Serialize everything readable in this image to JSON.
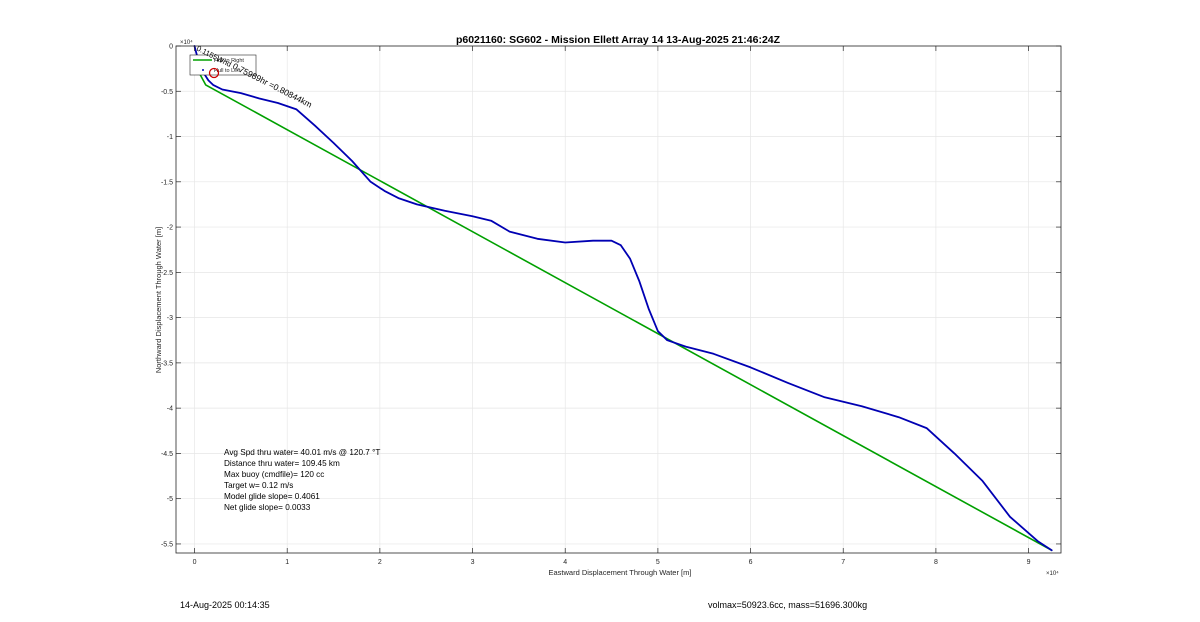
{
  "chart_data": {
    "type": "line",
    "title": "p6021160: SG602 - Mission Ellett Array 14 13-Aug-2025 21:46:24Z",
    "xlabel": "Eastward Displacement Through Water [m]",
    "ylabel": "Northward Displacement Through Water [m]",
    "x_exponent_label": "×10⁴",
    "y_exponent_label": "×10⁴",
    "xlim": [
      -0.2,
      9.35
    ],
    "ylim": [
      -5.6,
      0
    ],
    "x_unit_scale": 10000,
    "y_unit_scale": 10000,
    "xticks": [
      0,
      1,
      2,
      3,
      4,
      5,
      6,
      7,
      8,
      9
    ],
    "xtick_labels": [
      "0",
      "1",
      "2",
      "3",
      "4",
      "5",
      "6",
      "7",
      "8",
      "9"
    ],
    "yticks": [
      0,
      -0.5,
      -1,
      -1.5,
      -2,
      -2.5,
      -3,
      -3.5,
      -4,
      -4.5,
      -5,
      -5.5
    ],
    "ytick_labels": [
      "0",
      "-0.5",
      "-1",
      "-1.5",
      "-2",
      "-2.5",
      "-3",
      "-3.5",
      "-4",
      "-4.5",
      "-5",
      "-5.5"
    ],
    "grid": true,
    "legend": {
      "placement": "top-left",
      "entries": [
        "Hull to Right",
        "Hull to Left"
      ]
    },
    "series": [
      {
        "color": "#0000b3",
        "x": [
          0.0,
          0.05,
          0.1,
          0.15,
          0.2,
          0.3,
          0.5,
          0.7,
          0.9,
          1.1,
          1.3,
          1.5,
          1.7,
          1.9,
          2.05,
          2.2,
          2.4,
          2.7,
          3.0,
          3.2,
          3.4,
          3.7,
          4.0,
          4.3,
          4.5,
          4.6,
          4.7,
          4.8,
          4.9,
          5.0,
          5.1,
          5.3,
          5.6,
          6.0,
          6.4,
          6.8,
          7.2,
          7.6,
          7.9,
          8.2,
          8.5,
          8.8,
          9.1,
          9.25
        ],
        "y": [
          0.0,
          -0.2,
          -0.3,
          -0.38,
          -0.43,
          -0.48,
          -0.52,
          -0.58,
          -0.63,
          -0.7,
          -0.88,
          -1.07,
          -1.27,
          -1.5,
          -1.6,
          -1.68,
          -1.75,
          -1.82,
          -1.88,
          -1.93,
          -2.05,
          -2.13,
          -2.17,
          -2.15,
          -2.15,
          -2.2,
          -2.35,
          -2.6,
          -2.9,
          -3.15,
          -3.25,
          -3.32,
          -3.4,
          -3.55,
          -3.72,
          -3.88,
          -3.98,
          -4.1,
          -4.22,
          -4.5,
          -4.8,
          -5.2,
          -5.47,
          -5.57
        ]
      },
      {
        "color": "#00a000",
        "x": [
          0.0,
          0.12,
          9.25
        ],
        "y": [
          -0.2,
          -0.43,
          -5.57
        ]
      }
    ],
    "legend_line_color": "#00a000",
    "legend_circle_color": "#cc0000",
    "annotations": {
      "diagonal_label": "0.75989hr =0.80844km",
      "diagonal_label_prefix": "0.1155Wnd",
      "stats": [
        "Avg Spd thru water= 40.01 m/s @ 120.7 °T",
        "Distance thru water= 109.45 km",
        "Max buoy (cmdfile)= 120 cc",
        "Target w= 0.12 m/s",
        "Model glide slope= 0.4061",
        "Net glide slope= 0.0033"
      ]
    }
  },
  "footer": {
    "left": "14-Aug-2025 00:14:35",
    "right": "volmax=50923.6cc, mass=51696.300kg"
  }
}
